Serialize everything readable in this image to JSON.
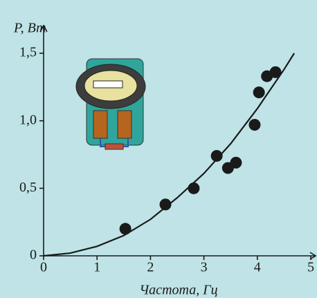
{
  "chart_data": {
    "type": "scatter",
    "x_label": "Частота, Гц",
    "y_label": "P, Вт",
    "x": [
      1.53,
      2.28,
      2.81,
      3.24,
      3.45,
      3.6,
      3.95,
      4.03,
      4.18,
      4.34
    ],
    "values": [
      0.2,
      0.38,
      0.5,
      0.74,
      0.65,
      0.69,
      0.97,
      1.21,
      1.33,
      1.36
    ],
    "color": "#1a1a1a",
    "curve": {
      "type": "line",
      "x": [
        0,
        0.5,
        1,
        1.5,
        2,
        2.5,
        3,
        3.5,
        4,
        4.5,
        4.69
      ],
      "values": [
        0,
        0.02,
        0.07,
        0.15,
        0.27,
        0.43,
        0.61,
        0.83,
        1.09,
        1.38,
        1.5
      ],
      "color": "#1a1a1a"
    },
    "xlim": [
      0,
      5
    ],
    "ylim": [
      0,
      1.5
    ],
    "xticks": [
      0,
      1,
      2,
      3,
      4,
      5
    ],
    "yticks": [
      0,
      {
        "value": 0.5,
        "label": "0,5"
      },
      {
        "value": 1,
        "label": "1,0"
      },
      {
        "value": 1.5,
        "label": "1,5"
      }
    ]
  }
}
